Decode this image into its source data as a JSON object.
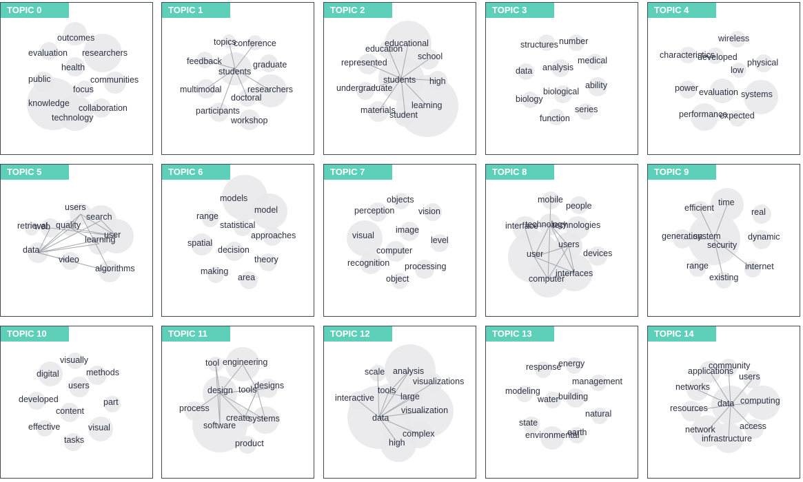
{
  "topics": [
    {
      "label": "TOPIC 0",
      "words": [
        "outcomes",
        "evaluation",
        "researchers",
        "health",
        "public",
        "communities",
        "focus",
        "knowledge",
        "collaboration",
        "technology"
      ]
    },
    {
      "label": "TOPIC 1",
      "words": [
        "topics",
        "conference",
        "feedback",
        "students",
        "graduate",
        "multimodal",
        "researchers",
        "doctoral",
        "participants",
        "workshop"
      ]
    },
    {
      "label": "TOPIC 2",
      "words": [
        "educational",
        "education",
        "school",
        "represented",
        "students",
        "high",
        "undergraduate",
        "learning",
        "materials",
        "student"
      ]
    },
    {
      "label": "TOPIC 3",
      "words": [
        "structures",
        "number",
        "medical",
        "data",
        "analysis",
        "ability",
        "biological",
        "biology",
        "series",
        "function"
      ]
    },
    {
      "label": "TOPIC 4",
      "words": [
        "wireless",
        "characteristics",
        "developed",
        "physical",
        "low",
        "power",
        "evaluation",
        "systems",
        "performance",
        "expected"
      ]
    },
    {
      "label": "TOPIC 5",
      "words": [
        "users",
        "search",
        "retrieval",
        "quality",
        "user",
        "web",
        "learning",
        "data",
        "video",
        "algorithms"
      ]
    },
    {
      "label": "TOPIC 6",
      "words": [
        "models",
        "model",
        "range",
        "statistical",
        "approaches",
        "spatial",
        "decision",
        "theory",
        "making",
        "area"
      ]
    },
    {
      "label": "TOPIC 7",
      "words": [
        "objects",
        "perception",
        "vision",
        "image",
        "visual",
        "level",
        "computer",
        "recognition",
        "processing",
        "object"
      ]
    },
    {
      "label": "TOPIC 8",
      "words": [
        "mobile",
        "people",
        "interface",
        "technology",
        "technologies",
        "users",
        "user",
        "devices",
        "interfaces",
        "computer"
      ]
    },
    {
      "label": "TOPIC 9",
      "words": [
        "time",
        "efficient",
        "real",
        "generation",
        "system",
        "dynamic",
        "security",
        "range",
        "existing",
        "internet"
      ]
    },
    {
      "label": "TOPIC 10",
      "words": [
        "visually",
        "digital",
        "methods",
        "users",
        "developed",
        "part",
        "content",
        "effective",
        "visual",
        "tasks"
      ]
    },
    {
      "label": "TOPIC 11",
      "words": [
        "tool",
        "engineering",
        "designs",
        "design",
        "tools",
        "process",
        "create",
        "systems",
        "software",
        "product"
      ]
    },
    {
      "label": "TOPIC 12",
      "words": [
        "scale",
        "analysis",
        "visualizations",
        "interactive",
        "tools",
        "large",
        "visualization",
        "data",
        "complex",
        "high"
      ]
    },
    {
      "label": "TOPIC 13",
      "words": [
        "energy",
        "response",
        "management",
        "modeling",
        "water",
        "building",
        "natural",
        "state",
        "environmental",
        "earth"
      ]
    },
    {
      "label": "TOPIC 14",
      "words": [
        "community",
        "applications",
        "users",
        "networks",
        "data",
        "computing",
        "resources",
        "access",
        "network",
        "infrastructure"
      ]
    }
  ],
  "colors": {
    "tab": "#5ecfb8",
    "bubble": "#e8e8ec",
    "edge": "#a3a6ad",
    "text": "#2b3140",
    "border": "#3e4a54"
  }
}
